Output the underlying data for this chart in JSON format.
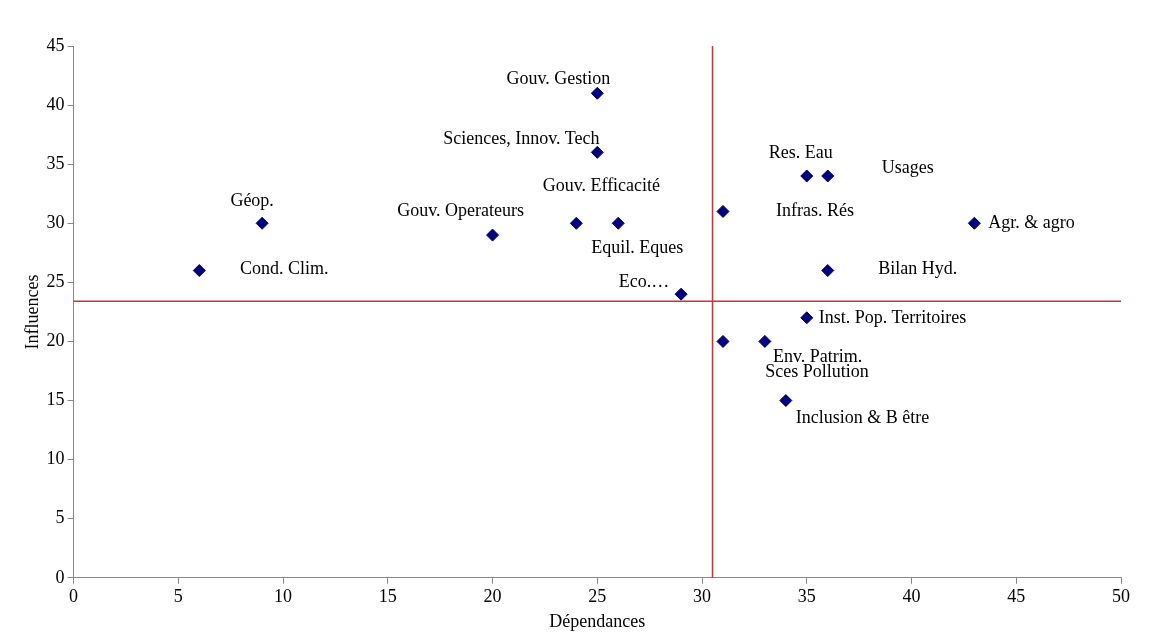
{
  "chart_data": {
    "type": "scatter",
    "xlabel": "Dépendances",
    "ylabel": "Influences",
    "xlim": [
      0,
      50
    ],
    "xticks": [
      0,
      5,
      10,
      15,
      20,
      25,
      30,
      35,
      40,
      45,
      50
    ],
    "ylim": [
      0,
      45
    ],
    "yticks": [
      0,
      5,
      10,
      15,
      20,
      25,
      30,
      35,
      40,
      45
    ],
    "grid": false,
    "legend": false,
    "marker": "diamond",
    "series": [
      {
        "color": "#000080",
        "x": [
          6,
          9,
          20,
          24,
          26,
          25,
          25,
          29,
          31,
          35,
          36,
          43,
          36,
          35,
          31,
          33,
          34
        ],
        "values": [
          26,
          30,
          29,
          30,
          30,
          41,
          36,
          24,
          31,
          34,
          34,
          30,
          26,
          22,
          20,
          20,
          15
        ]
      }
    ],
    "ref_lines": [
      {
        "axis": "x",
        "value": 30.5,
        "color": "#cc3333"
      },
      {
        "axis": "y",
        "value": 23.4,
        "color": "#cc3333"
      }
    ],
    "annotations": [
      {
        "text": "Gouv. Gestion",
        "x": 25,
        "y": 41
      },
      {
        "text": "Sciences, Innov. Tech",
        "x": 25,
        "y": 36
      },
      {
        "text": "Géop.",
        "x": 9,
        "y": 30
      },
      {
        "text": "Gouv. Operateurs",
        "x": 20,
        "y": 29
      },
      {
        "text": "Gouv. Efficacité",
        "x": 24,
        "y": 30
      },
      {
        "text": "Equil. Eques",
        "x": 26,
        "y": 30
      },
      {
        "text": "Eco.…",
        "x": 29,
        "y": 24
      },
      {
        "text": "Cond. Clim.",
        "x": 6,
        "y": 26
      },
      {
        "text": "Res. Eau",
        "x": 35,
        "y": 34
      },
      {
        "text": "Usages",
        "x": 36,
        "y": 34
      },
      {
        "text": "Infras. Rés",
        "x": 31,
        "y": 31
      },
      {
        "text": "Agr. & agro",
        "x": 43,
        "y": 30
      },
      {
        "text": "Bilan Hyd.",
        "x": 36,
        "y": 26
      },
      {
        "text": "Inst. Pop. Territoires",
        "x": 35,
        "y": 22
      },
      {
        "text": "Env. Patrim.",
        "x": 33,
        "y": 20
      },
      {
        "text": "Sces Pollution",
        "x": 31,
        "y": 20
      },
      {
        "text": "Inclusion & B être",
        "x": 34,
        "y": 15
      }
    ]
  }
}
